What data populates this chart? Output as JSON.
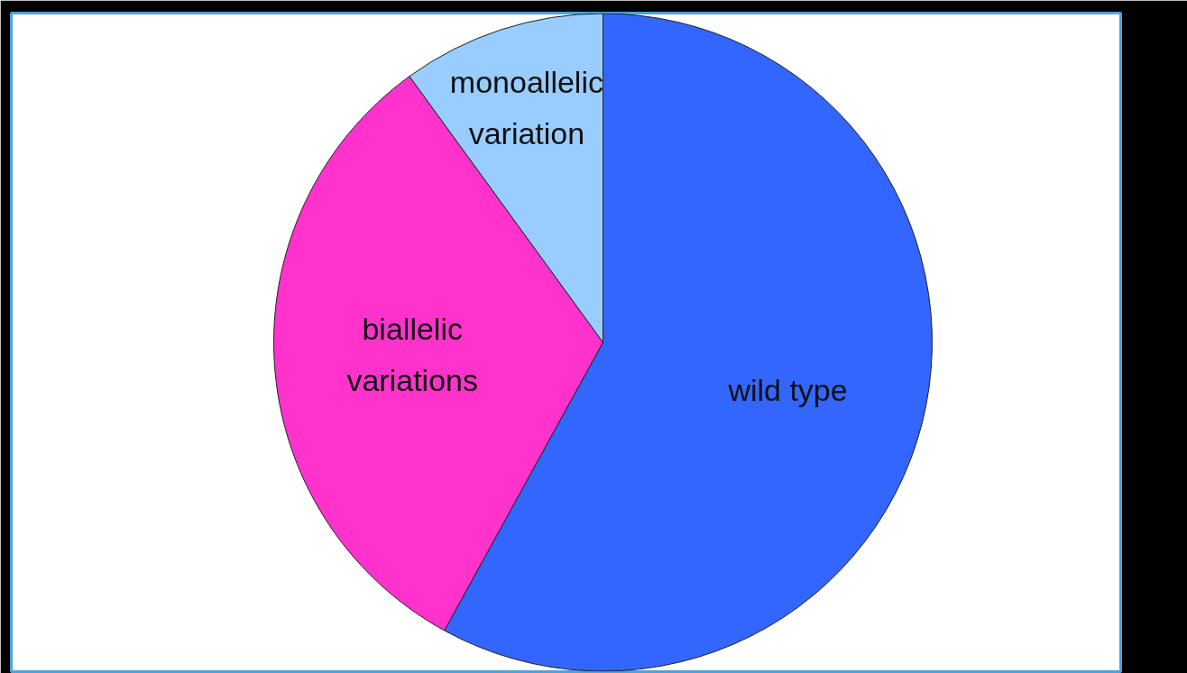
{
  "chart_data": {
    "type": "pie",
    "categories": [
      "wild type",
      "biallelic\nvariations",
      "monoallelic\nvariation"
    ],
    "values": [
      58,
      32,
      10
    ],
    "colors": [
      "#3366ff",
      "#ff33cc",
      "#99ccff"
    ]
  }
}
